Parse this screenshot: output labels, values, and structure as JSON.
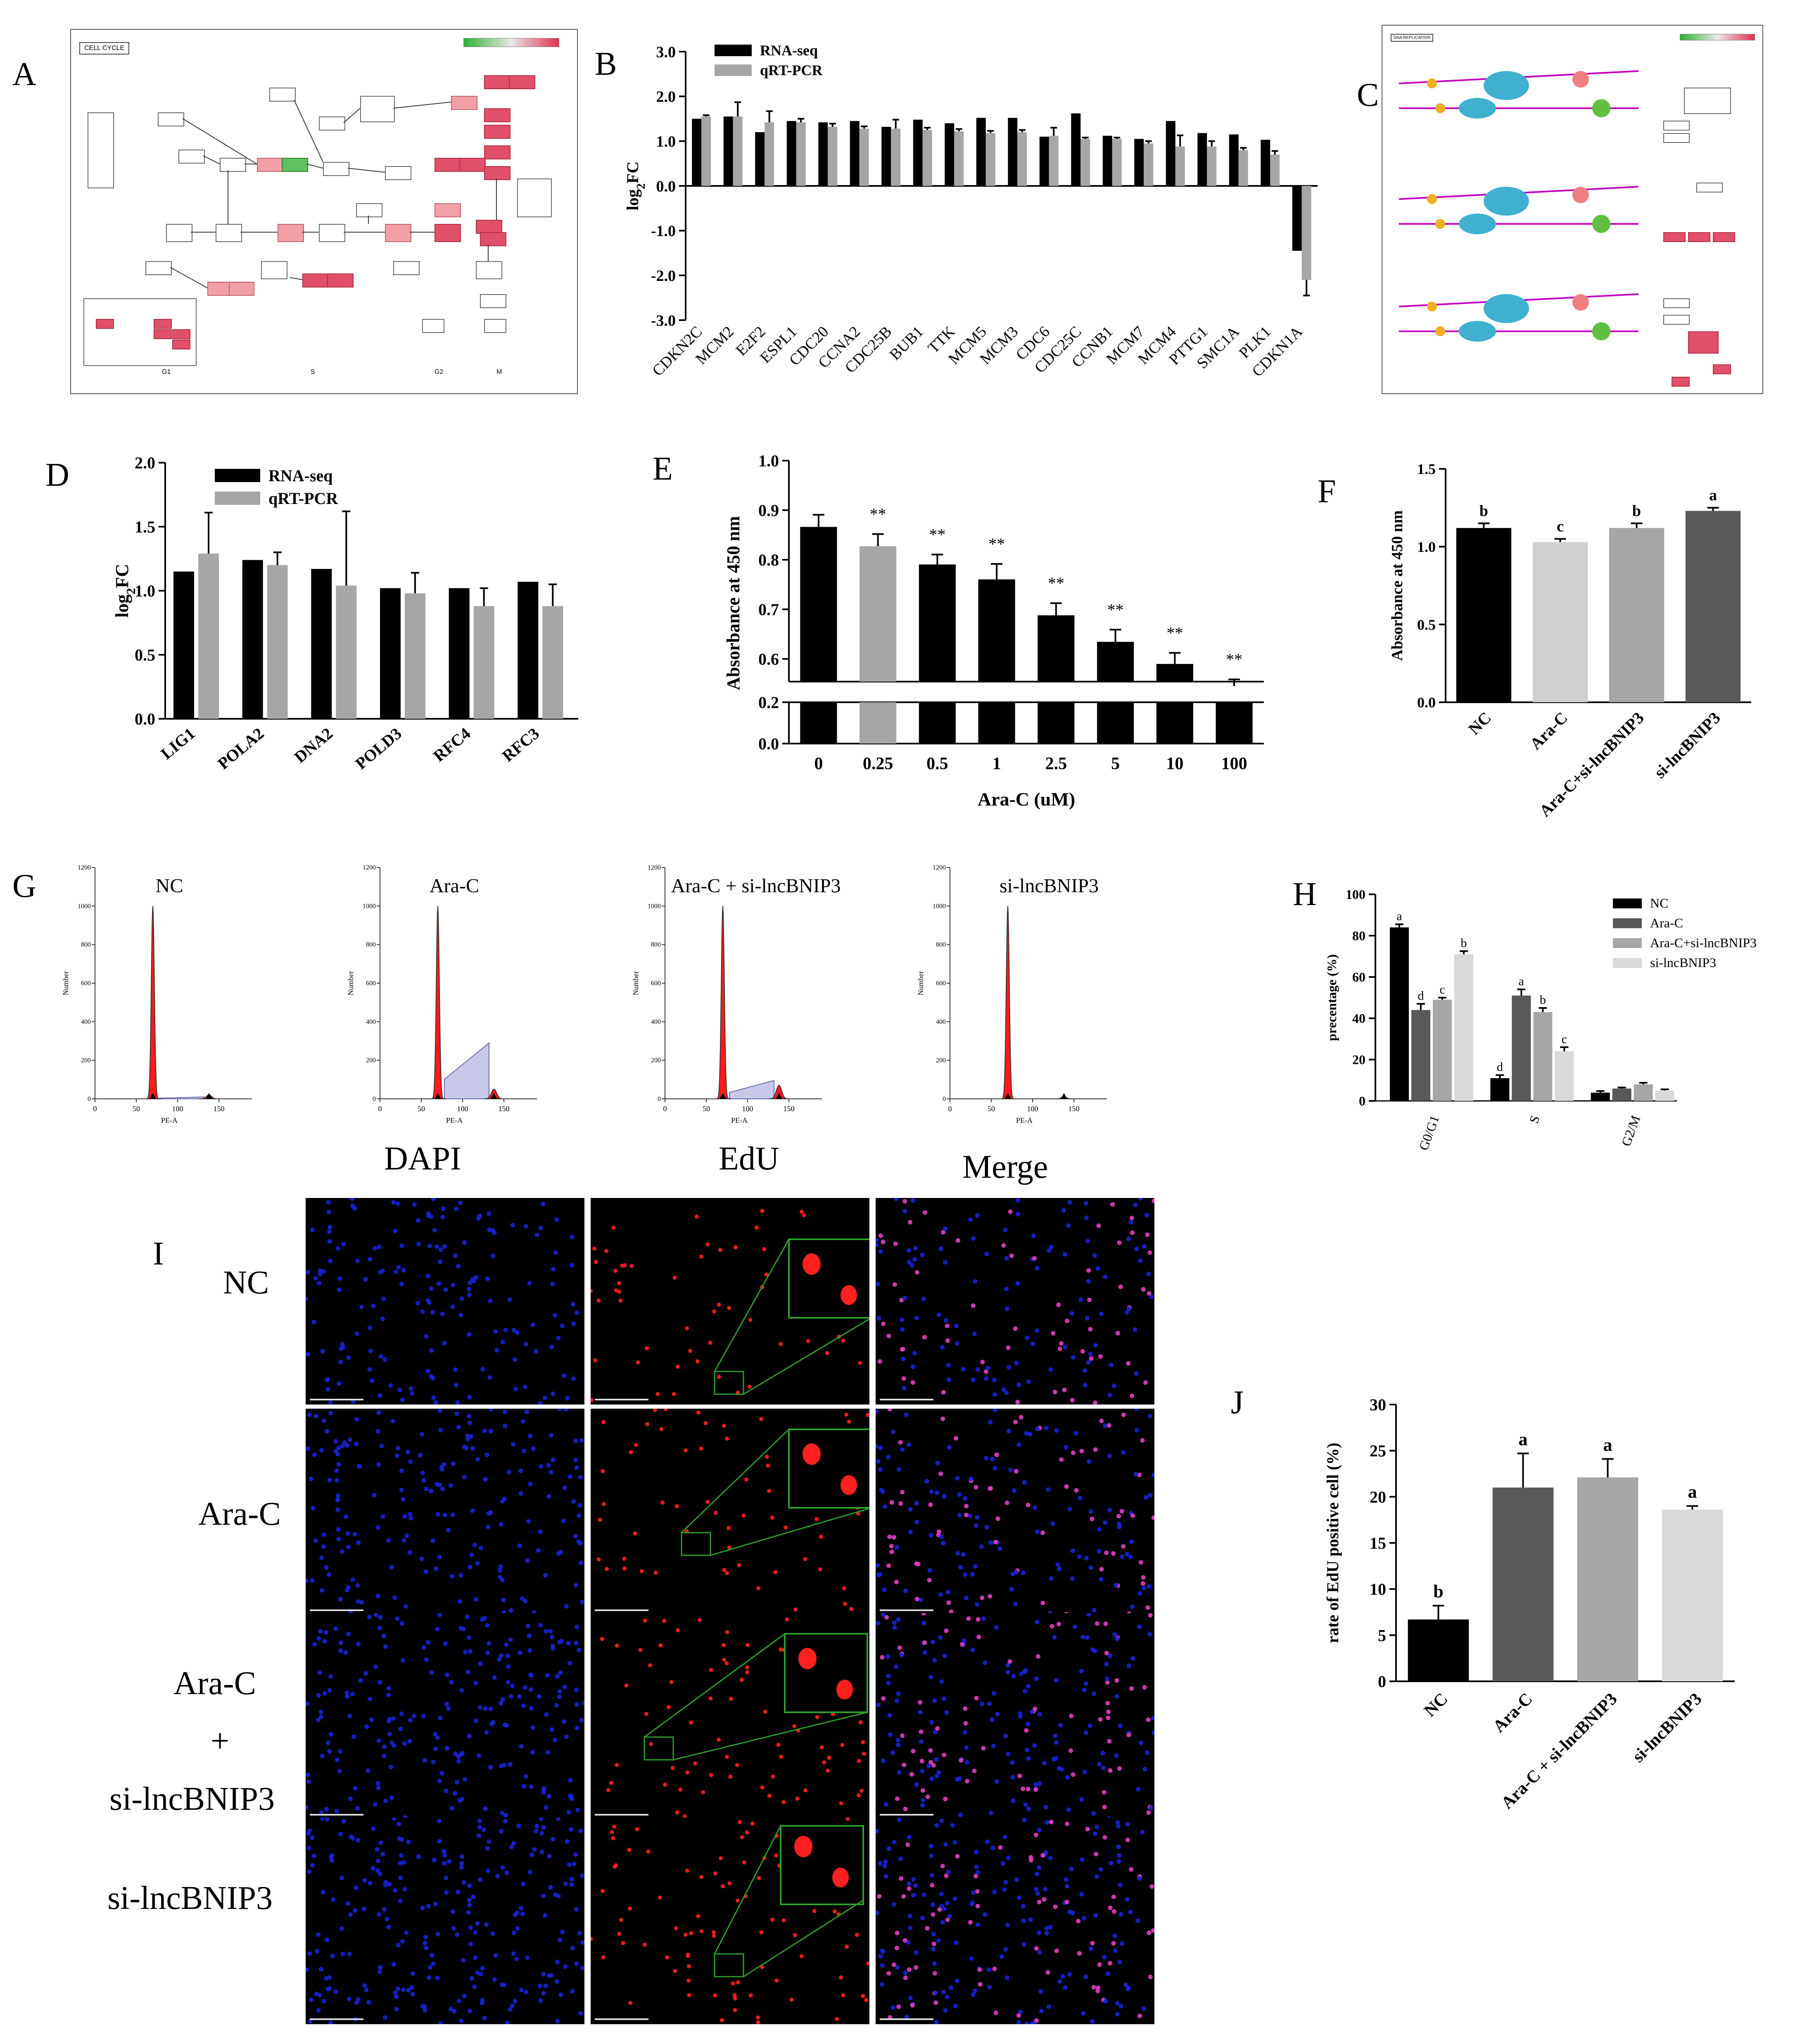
{
  "panel_labels": {
    "A": "A",
    "B": "B",
    "C": "C",
    "D": "D",
    "E": "E",
    "F": "F",
    "G": "G",
    "H": "H",
    "I": "I",
    "J": "J"
  },
  "kegg_a": {
    "title": "CELL CYCLE",
    "phases": [
      "G1",
      "S",
      "G2",
      "M"
    ]
  },
  "kegg_c": {
    "title": "DNA REPLICATION"
  },
  "chart_data": [
    {
      "id": "B",
      "type": "bar",
      "categories": [
        "CDKN2C",
        "MCM2",
        "E2F2",
        "ESPL1",
        "CDC20",
        "CCNA2",
        "CDC25B",
        "BUB1",
        "TTK",
        "MCM5",
        "MCM3",
        "CDC6",
        "CDC25C",
        "CCNB1",
        "MCM7",
        "MCM4",
        "PTTG1",
        "SMC1A",
        "PLK1",
        "CDKN1A"
      ],
      "series": [
        {
          "name": "RNA-seq",
          "color": "#000000",
          "values": [
            1.5,
            1.55,
            1.2,
            1.45,
            1.42,
            1.45,
            1.32,
            1.48,
            1.4,
            1.52,
            1.52,
            1.1,
            1.62,
            1.12,
            1.05,
            1.45,
            1.18,
            1.15,
            1.03,
            -1.45
          ],
          "errors": [
            0,
            0,
            0,
            0,
            0,
            0,
            0,
            0,
            0,
            0,
            0,
            0,
            0,
            0,
            0,
            0,
            0,
            0,
            0,
            0
          ]
        },
        {
          "name": "qRT-PCR",
          "color": "#a6a6a6",
          "values": [
            1.55,
            1.55,
            1.42,
            1.42,
            1.32,
            1.28,
            1.28,
            1.25,
            1.22,
            1.18,
            1.2,
            1.12,
            1.05,
            1.05,
            0.95,
            0.88,
            0.88,
            0.8,
            0.7,
            -2.1
          ],
          "errors": [
            0.03,
            0.32,
            0.25,
            0.08,
            0.07,
            0.05,
            0.2,
            0.05,
            0.05,
            0.05,
            0.05,
            0.18,
            0.03,
            0.03,
            0.05,
            0.25,
            0.12,
            0.05,
            0.08,
            0.35
          ]
        }
      ],
      "ylabel": "log2FC",
      "ylim": [
        -3.0,
        3.0
      ],
      "yticks": [
        "3.0",
        "2.0",
        "1.0",
        "0.0",
        "-1.0",
        "-2.0",
        "-3.0"
      ],
      "legend_position": "top-left"
    },
    {
      "id": "D",
      "type": "bar",
      "categories": [
        "LIG1",
        "POLA2",
        "DNA2",
        "POLD3",
        "RFC4",
        "RFC3"
      ],
      "series": [
        {
          "name": "RNA-seq",
          "color": "#000000",
          "values": [
            1.15,
            1.24,
            1.17,
            1.02,
            1.02,
            1.07
          ],
          "errors": [
            0,
            0,
            0,
            0,
            0,
            0
          ]
        },
        {
          "name": "qRT-PCR",
          "color": "#a6a6a6",
          "values": [
            1.29,
            1.2,
            1.04,
            0.98,
            0.88,
            0.88
          ],
          "errors": [
            0.32,
            0.1,
            0.58,
            0.16,
            0.14,
            0.17
          ]
        }
      ],
      "ylabel": "log2FC",
      "ylim": [
        0.0,
        2.0
      ],
      "yticks": [
        "0.0",
        "0.5",
        "1.0",
        "1.5",
        "2.0"
      ],
      "legend_position": "top-right"
    },
    {
      "id": "E",
      "type": "bar",
      "categories": [
        "0",
        "0.25",
        "0.5",
        "1",
        "2.5",
        "5",
        "10",
        "100"
      ],
      "values": [
        0.88,
        0.845,
        0.812,
        0.785,
        0.72,
        0.672,
        0.632,
        0.592
      ],
      "errors": [
        0.022,
        0.022,
        0.018,
        0.028,
        0.022,
        0.022,
        0.02,
        0.012
      ],
      "colors": [
        "#000000",
        "#a6a6a6",
        "#000000",
        "#000000",
        "#000000",
        "#000000",
        "#000000",
        "#000000"
      ],
      "significance": [
        "",
        "**",
        "**",
        "**",
        "**",
        "**",
        "**",
        "**"
      ],
      "xlabel": "Ara-C (uM)",
      "ylabel": "Absorbance at 450 nm",
      "ylim_upper": [
        0.6,
        1.0
      ],
      "ylim_lower": [
        0.0,
        0.2
      ],
      "yticks_upper": [
        "1.0",
        "0.9",
        "0.8",
        "0.7",
        "0.6"
      ],
      "yticks_lower": [
        "0.2",
        "0.0"
      ]
    },
    {
      "id": "F",
      "type": "bar",
      "categories": [
        "NC",
        "Ara-C",
        "Ara-C+si-lncBNIP3",
        "si-lncBNIP3"
      ],
      "values": [
        1.12,
        1.03,
        1.12,
        1.23
      ],
      "errors": [
        0.03,
        0.02,
        0.03,
        0.02
      ],
      "colors": [
        "#000000",
        "#d0d0d0",
        "#a6a6a6",
        "#595959"
      ],
      "letters": [
        "b",
        "c",
        "b",
        "a"
      ],
      "ylabel": "Absorbance at 450 nm",
      "ylim": [
        0.0,
        1.5
      ],
      "yticks": [
        "0.0",
        "0.5",
        "1.0",
        "1.5"
      ]
    },
    {
      "id": "G",
      "type": "histogram",
      "titles": [
        "NC",
        "Ara-C",
        "Ara-C + si-lncBNIP3",
        "si-lncBNIP3"
      ],
      "xlabel": "PE-A",
      "ylabel": "Number",
      "xticks": [
        "0",
        "50",
        "100",
        "150"
      ],
      "yticks": [
        "0",
        "200",
        "400",
        "600",
        "800",
        "1000",
        "1200"
      ],
      "g1_peak": [
        1000,
        1000,
        1000,
        1000
      ],
      "s_phase_level": [
        10,
        290,
        95,
        0
      ],
      "g2_peak": [
        20,
        50,
        70,
        10
      ]
    },
    {
      "id": "H",
      "type": "bar",
      "categories": [
        "G0/G1",
        "S",
        "G2/M"
      ],
      "series": [
        {
          "name": "NC",
          "color": "#000000",
          "values": [
            84,
            11,
            4
          ],
          "errors": [
            1.5,
            1.5,
            0.8
          ]
        },
        {
          "name": "Ara-C",
          "color": "#595959",
          "values": [
            44,
            51,
            6
          ],
          "errors": [
            3,
            3,
            0.5
          ]
        },
        {
          "name": "Ara-C+si-lncBNIP3",
          "color": "#a6a6a6",
          "values": [
            49,
            43,
            8
          ],
          "errors": [
            1,
            2,
            0.8
          ]
        },
        {
          "name": "si-lncBNIP3",
          "color": "#d9d9d9",
          "values": [
            71,
            24,
            5
          ],
          "errors": [
            1.5,
            2,
            0.6
          ]
        }
      ],
      "letters": [
        [
          "a",
          "d",
          "c",
          "b"
        ],
        [
          "d",
          "a",
          "b",
          "c"
        ]
      ],
      "ylabel": "precentage (%)",
      "ylim": [
        0,
        100
      ],
      "yticks": [
        "0",
        "20",
        "40",
        "60",
        "80",
        "100"
      ],
      "legend_position": "top-right"
    },
    {
      "id": "J",
      "type": "bar",
      "categories": [
        "NC",
        "Ara-C",
        "Ara-C + si-lncBNIP3",
        "si-lncBNIP3"
      ],
      "values": [
        6.7,
        21.0,
        22.1,
        18.6
      ],
      "errors": [
        1.5,
        3.7,
        2.0,
        0.4
      ],
      "colors": [
        "#000000",
        "#595959",
        "#a6a6a6",
        "#d9d9d9"
      ],
      "letters": [
        "b",
        "a",
        "a",
        "a"
      ],
      "ylabel": "rate of EdU positive cell  (%)",
      "ylim": [
        0,
        30
      ],
      "yticks": [
        "0",
        "5",
        "10",
        "15",
        "20",
        "25",
        "30"
      ]
    }
  ],
  "microscopy": {
    "columns": [
      "DAPI",
      "EdU",
      "Merge"
    ],
    "rows": [
      "NC",
      "Ara-C",
      "Ara-C\n+\nsi-lncBNIP3",
      "si-lncBNIP3"
    ],
    "row_label_lines": [
      [
        "NC"
      ],
      [
        "Ara-C"
      ],
      [
        "Ara-C",
        "+",
        "si-lncBNIP3"
      ],
      [
        "si-lncBNIP3"
      ]
    ],
    "colors": {
      "dapi": "#1a22d6",
      "edu": "#ff2020",
      "merge_spot": "#e040c0",
      "background": "#000000",
      "inset_border": "#2da02d"
    }
  }
}
